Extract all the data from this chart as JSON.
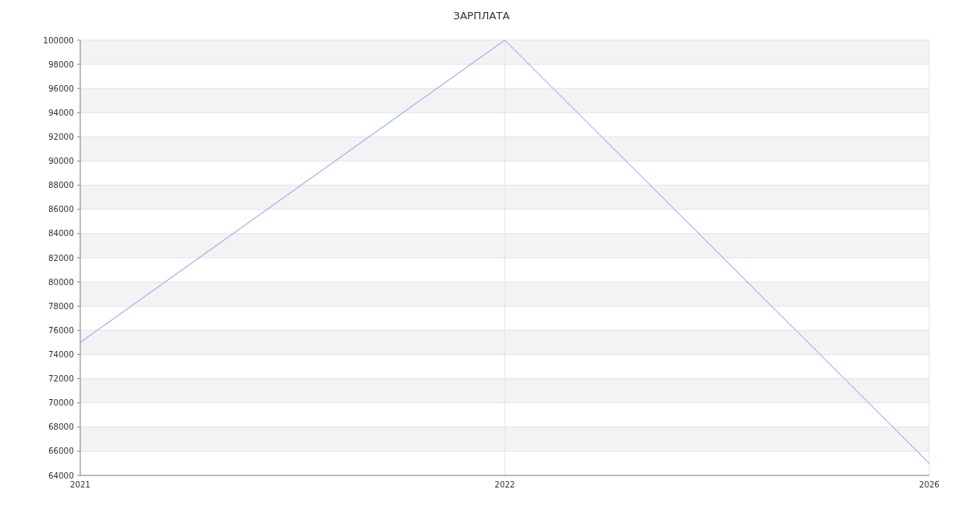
{
  "chart_data": {
    "type": "line",
    "title": "ЗАРПЛАТА",
    "categories": [
      "2021",
      "2022",
      "2026"
    ],
    "series": [
      {
        "color": "#6f9bf5",
        "values": [
          75000,
          100000,
          65000
        ]
      }
    ],
    "ylim": [
      64000,
      100000
    ],
    "yticks": [
      64000,
      66000,
      68000,
      70000,
      72000,
      74000,
      76000,
      78000,
      80000,
      82000,
      84000,
      86000,
      88000,
      90000,
      92000,
      94000,
      96000,
      98000,
      100000
    ],
    "grid": true,
    "marker": "none",
    "line_style": "solid"
  }
}
